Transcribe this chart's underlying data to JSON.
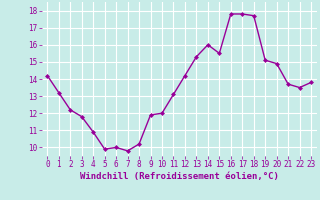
{
  "x": [
    0,
    1,
    2,
    3,
    4,
    5,
    6,
    7,
    8,
    9,
    10,
    11,
    12,
    13,
    14,
    15,
    16,
    17,
    18,
    19,
    20,
    21,
    22,
    23
  ],
  "y": [
    14.2,
    13.2,
    12.2,
    11.8,
    10.9,
    9.9,
    10.0,
    9.8,
    10.2,
    11.9,
    12.0,
    13.1,
    14.2,
    15.3,
    16.0,
    15.5,
    17.8,
    17.8,
    17.7,
    15.1,
    14.9,
    13.7,
    13.5,
    13.8
  ],
  "line_color": "#990099",
  "marker": "D",
  "marker_size": 2,
  "line_width": 1.0,
  "bg_color": "#c8ece8",
  "grid_color": "#ffffff",
  "xlabel": "Windchill (Refroidissement éolien,°C)",
  "xlabel_fontsize": 6.5,
  "tick_fontsize": 5.5,
  "ylim": [
    9.5,
    18.5
  ],
  "xlim": [
    -0.5,
    23.5
  ],
  "yticks": [
    10,
    11,
    12,
    13,
    14,
    15,
    16,
    17,
    18
  ],
  "xticks": [
    0,
    1,
    2,
    3,
    4,
    5,
    6,
    7,
    8,
    9,
    10,
    11,
    12,
    13,
    14,
    15,
    16,
    17,
    18,
    19,
    20,
    21,
    22,
    23
  ]
}
